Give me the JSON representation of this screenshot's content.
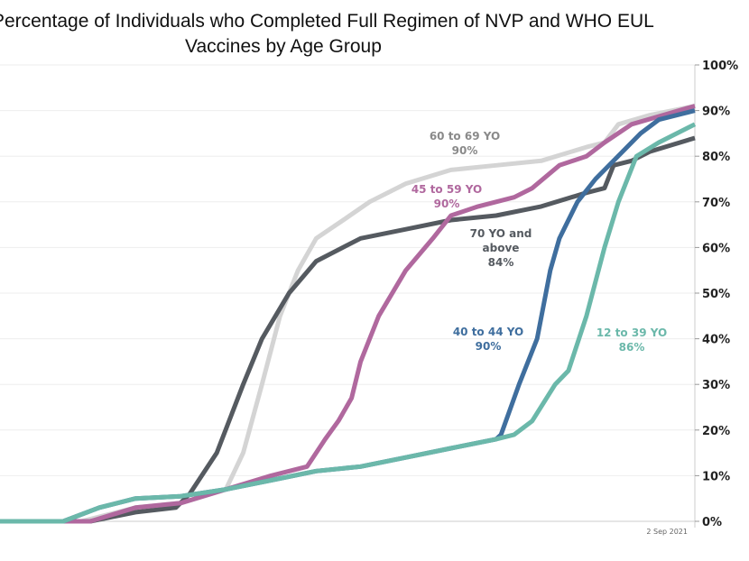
{
  "chart_data": {
    "type": "line",
    "title_line1": "Percentage of Individuals who Completed Full Regimen of NVP and WHO EUL",
    "title_line2": "Vaccines by Age Group",
    "xlabel": "",
    "ylabel": "",
    "x_tick_label": "2 Sep 2021",
    "x_tick_at": 96,
    "xlim": [
      0,
      100
    ],
    "ylim": [
      0,
      100
    ],
    "y_ticks": [
      "0%",
      "10%",
      "20%",
      "30%",
      "40%",
      "50%",
      "60%",
      "70%",
      "80%",
      "90%",
      "100%"
    ],
    "series": [
      {
        "name": "60 to 69 YO",
        "final": "90%",
        "color": "#d4d4d4",
        "x": [
          0,
          11.7,
          19.5,
          26,
          32.5,
          35,
          37.7,
          40.3,
          42.9,
          45.5,
          49.4,
          53.2,
          58.4,
          64.9,
          71.4,
          77.9,
          84.4,
          87,
          89,
          93.5,
          100
        ],
        "y": [
          0,
          0,
          3,
          4,
          7,
          15,
          30,
          45,
          55,
          62,
          66,
          70,
          74,
          77,
          78,
          79,
          82,
          83,
          87,
          89,
          91
        ]
      },
      {
        "name": "70 YO and above",
        "final": "84%",
        "color": "#555a60",
        "x": [
          0,
          13,
          19.5,
          25.3,
          27.3,
          31.2,
          35,
          37.7,
          41.6,
          45.5,
          51.9,
          58.4,
          64.9,
          71.4,
          77.9,
          84.4,
          87,
          88.3,
          90.9,
          93.5,
          100
        ],
        "y": [
          0,
          0,
          2,
          3,
          6,
          15,
          30,
          40,
          50,
          57,
          62,
          64,
          66,
          67,
          69,
          72,
          73,
          78,
          79,
          81,
          84
        ]
      },
      {
        "name": "45 to 59 YO",
        "final": "90%",
        "color": "#b0689e",
        "x": [
          0,
          13,
          19.5,
          26,
          32.5,
          39,
          44.2,
          46.8,
          48.7,
          50.6,
          51.9,
          54.5,
          58.4,
          62.3,
          64.9,
          68.8,
          74,
          76.6,
          80.5,
          84.4,
          87,
          90.9,
          100
        ],
        "y": [
          0,
          0,
          3,
          4,
          7,
          10,
          12,
          18,
          22,
          27,
          35,
          45,
          55,
          62,
          67,
          69,
          71,
          73,
          78,
          80,
          83,
          87,
          91
        ]
      },
      {
        "name": "40 to 44 YO",
        "final": "90%",
        "color": "#3f6e9e",
        "x": [
          0,
          9.1,
          14.3,
          19.5,
          26,
          32.5,
          39,
          45.5,
          51.9,
          58.4,
          64.9,
          71.4,
          72.1,
          74.7,
          77.3,
          79.2,
          80.5,
          83.1,
          85.7,
          88.3,
          92.2,
          94.8,
          100
        ],
        "y": [
          0,
          0,
          3,
          5,
          5.5,
          7,
          9,
          11,
          12,
          14,
          16,
          18,
          19,
          30,
          40,
          55,
          62,
          70,
          75,
          79,
          85,
          88,
          90
        ]
      },
      {
        "name": "12 to 39 YO",
        "final": "86%",
        "color": "#6bb8aa",
        "x": [
          0,
          9.1,
          14.3,
          19.5,
          26,
          32.5,
          39,
          45.5,
          51.9,
          58.4,
          64.9,
          71.4,
          74,
          76.6,
          79.9,
          81.8,
          84.4,
          87,
          89,
          91.6,
          94.8,
          100
        ],
        "y": [
          0,
          0,
          3,
          5,
          5.5,
          7,
          9,
          11,
          12,
          14,
          16,
          18,
          19,
          22,
          30,
          33,
          45,
          60,
          70,
          80,
          83,
          87
        ]
      }
    ],
    "annotations": [
      {
        "line1": "60 to 69 YO",
        "line2": "90%"
      },
      {
        "line1": "45 to 59 YO",
        "line2": "90%"
      },
      {
        "line1": "70 YO and",
        "line2": "above",
        "line3": "84%"
      },
      {
        "line1": "40 to 44 YO",
        "line2": "90%"
      },
      {
        "line1": "12 to 39 YO",
        "line2": "86%"
      }
    ]
  }
}
